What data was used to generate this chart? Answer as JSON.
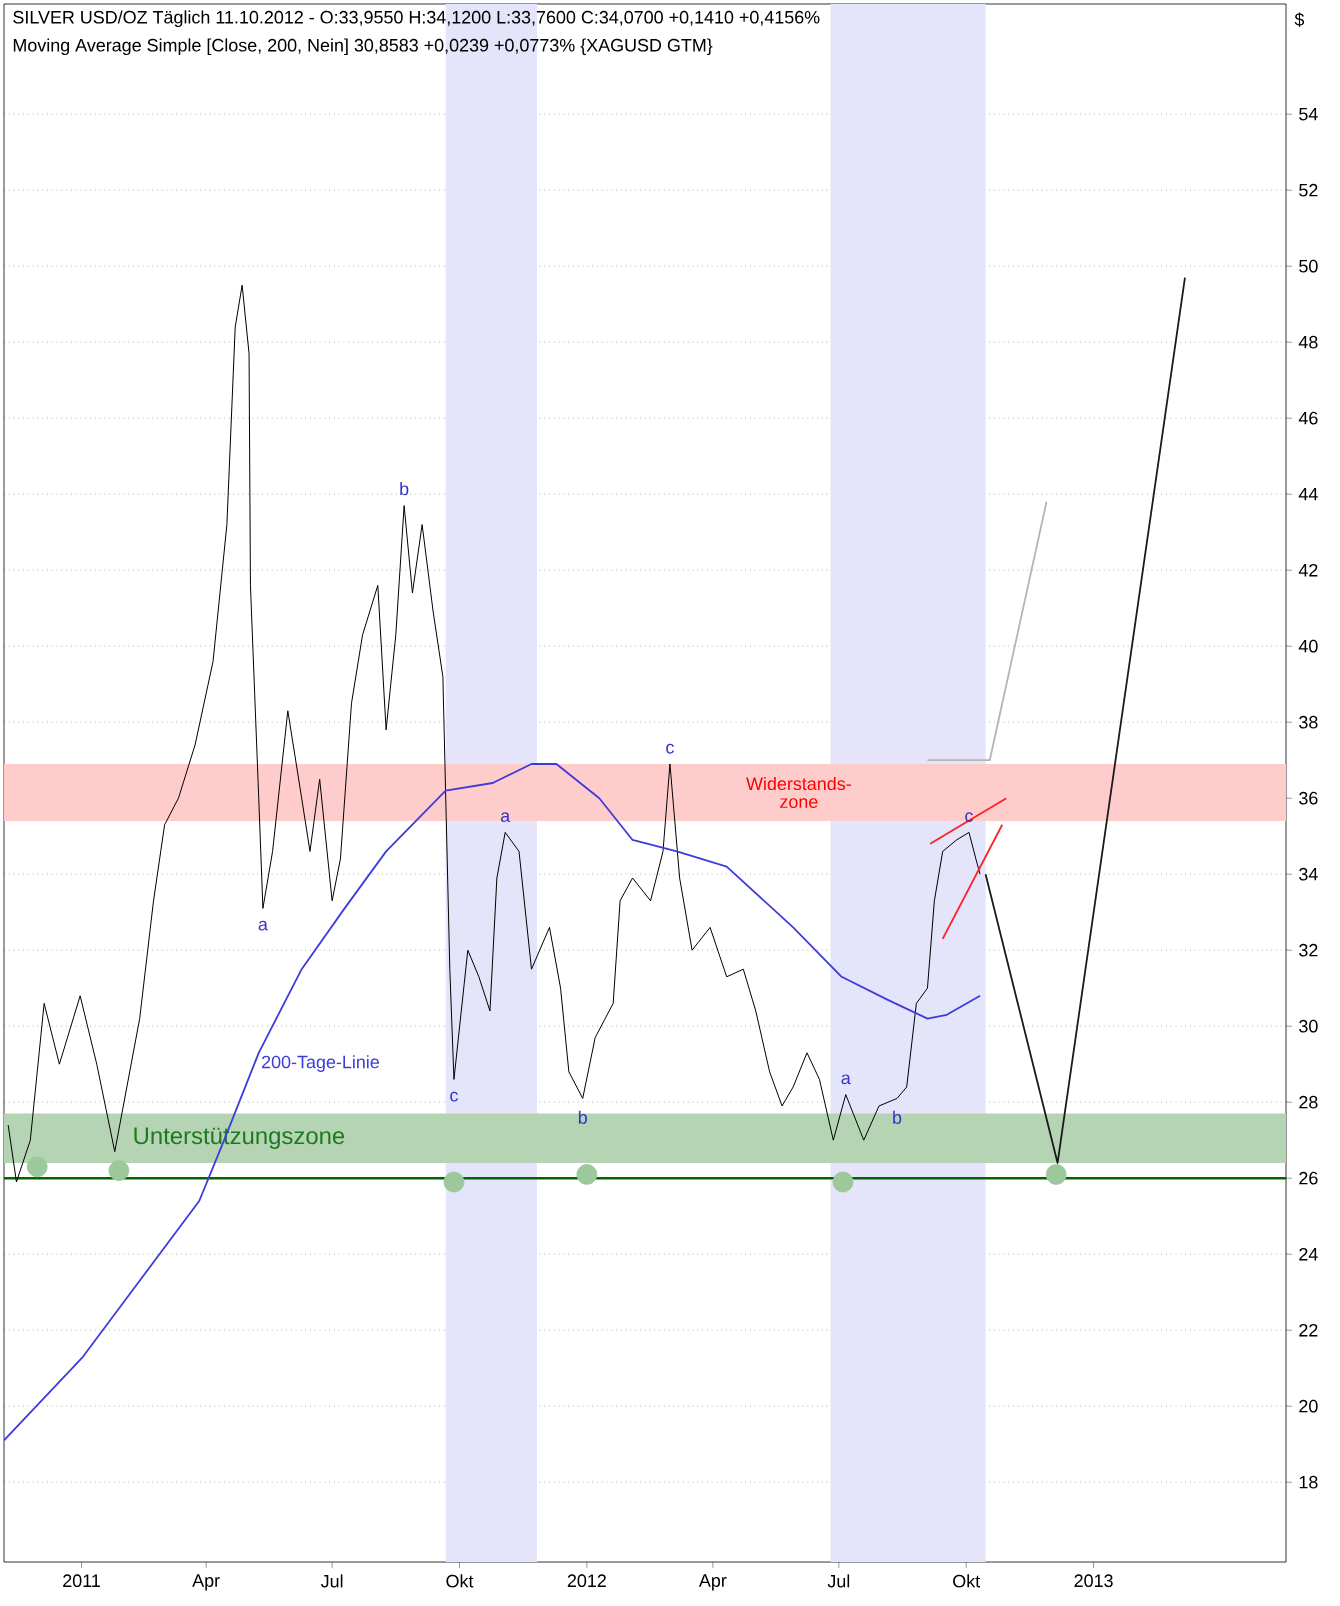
{
  "chart_data": {
    "type": "line",
    "title": "SILVER USD/OZ Täglich 11.10.2012 - O:33,9550 H:34,1200 L:33,7600 C:34,0700 +0,1410 +0,4156%",
    "subtitle": "Moving Average Simple [Close, 200, Nein] 30,8583 +0,0239 +0,0773% {XAGUSD GTM}",
    "ylabel": "$",
    "xlim": [
      "2010-11-06",
      "2013-05-20"
    ],
    "xticks": [
      {
        "value": "2011-01-01",
        "label": "2011"
      },
      {
        "value": "2011-04-01",
        "label": "Apr"
      },
      {
        "value": "2011-07-01",
        "label": "Jul"
      },
      {
        "value": "2011-10-01",
        "label": "Okt"
      },
      {
        "value": "2012-01-01",
        "label": "2012"
      },
      {
        "value": "2012-04-01",
        "label": "Apr"
      },
      {
        "value": "2012-07-01",
        "label": "Jul"
      },
      {
        "value": "2012-10-01",
        "label": "Okt"
      },
      {
        "value": "2013-01-01",
        "label": "2013"
      }
    ],
    "ylim": [
      15.9,
      56.9
    ],
    "yticks": [
      18,
      20,
      22,
      24,
      26,
      28,
      30,
      32,
      34,
      36,
      38,
      40,
      42,
      44,
      46,
      48,
      50,
      52,
      54
    ],
    "grid": "y",
    "series": [
      {
        "color": "#000000",
        "x": [
          "2010-11-09",
          "2010-11-15",
          "2010-11-25",
          "2010-12-05",
          "2010-12-16",
          "2010-12-31",
          "2011-01-12",
          "2011-01-25",
          "2011-02-12",
          "2011-02-22",
          "2011-03-02",
          "2011-03-12",
          "2011-03-24",
          "2011-04-06",
          "2011-04-16",
          "2011-04-22",
          "2011-04-27",
          "2011-05-02",
          "2011-05-03",
          "2011-05-09",
          "2011-05-12",
          "2011-05-19",
          "2011-05-30",
          "2011-06-09",
          "2011-06-15",
          "2011-06-22",
          "2011-07-01",
          "2011-07-07",
          "2011-07-15",
          "2011-07-23",
          "2011-08-03",
          "2011-08-09",
          "2011-08-16",
          "2011-08-22",
          "2011-08-28",
          "2011-09-04",
          "2011-09-12",
          "2011-09-19",
          "2011-09-24",
          "2011-09-27",
          "2011-10-07",
          "2011-10-15",
          "2011-10-23",
          "2011-10-28",
          "2011-11-03",
          "2011-11-13",
          "2011-11-22",
          "2011-12-05",
          "2011-12-13",
          "2011-12-19",
          "2011-12-29",
          "2012-01-07",
          "2012-01-20",
          "2012-01-25",
          "2012-02-03",
          "2012-02-16",
          "2012-02-25",
          "2012-03-01",
          "2012-03-08",
          "2012-03-17",
          "2012-03-30",
          "2012-04-11",
          "2012-04-23",
          "2012-05-02",
          "2012-05-12",
          "2012-05-21",
          "2012-05-29",
          "2012-06-08",
          "2012-06-17",
          "2012-06-27",
          "2012-07-06",
          "2012-07-19",
          "2012-07-30",
          "2012-08-12",
          "2012-08-19",
          "2012-08-26",
          "2012-09-03",
          "2012-09-08",
          "2012-09-14",
          "2012-09-24",
          "2012-10-03",
          "2012-10-08",
          "2012-10-11"
        ],
        "values": [
          27.4,
          25.9,
          27.0,
          30.6,
          29.0,
          30.8,
          29.0,
          26.7,
          30.2,
          33.3,
          35.3,
          36.0,
          37.4,
          39.6,
          43.2,
          48.4,
          49.5,
          47.7,
          41.6,
          36.0,
          33.1,
          34.6,
          38.3,
          36.0,
          34.6,
          36.5,
          33.3,
          34.4,
          38.5,
          40.3,
          41.6,
          37.8,
          40.3,
          43.7,
          41.4,
          43.2,
          40.9,
          39.2,
          31.5,
          28.6,
          32.0,
          31.3,
          30.4,
          33.9,
          35.1,
          34.6,
          31.5,
          32.6,
          31.0,
          28.8,
          28.1,
          29.7,
          30.6,
          33.3,
          33.9,
          33.3,
          34.6,
          36.9,
          33.9,
          32.0,
          32.6,
          31.3,
          31.5,
          30.4,
          28.8,
          27.9,
          28.4,
          29.3,
          28.6,
          27.0,
          28.2,
          27.0,
          27.9,
          28.1,
          28.4,
          30.6,
          31.0,
          33.3,
          34.6,
          34.9,
          35.1,
          34.4,
          34.0
        ]
      },
      {
        "name": "200-Tage-Linie",
        "color": "#3c3cdc",
        "x": [
          "2010-11-06",
          "2011-01-02",
          "2011-02-14",
          "2011-03-27",
          "2011-04-14",
          "2011-05-09",
          "2011-06-09",
          "2011-07-10",
          "2011-08-09",
          "2011-09-21",
          "2011-10-25",
          "2011-11-22",
          "2011-12-10",
          "2012-01-10",
          "2012-02-03",
          "2012-03-06",
          "2012-04-11",
          "2012-05-29",
          "2012-07-03",
          "2012-08-05",
          "2012-09-03",
          "2012-09-17",
          "2012-10-11"
        ],
        "values": [
          19.1,
          21.3,
          23.4,
          25.4,
          27.0,
          29.3,
          31.5,
          33.1,
          34.6,
          36.2,
          36.4,
          36.9,
          36.9,
          36.0,
          34.9,
          34.6,
          34.2,
          32.6,
          31.3,
          30.7,
          30.2,
          30.3,
          30.8
        ]
      },
      {
        "color": "#1a1a1a",
        "x": [
          "2012-10-15",
          "2012-12-06",
          "2013-03-08"
        ],
        "values": [
          34.0,
          26.4,
          49.7
        ]
      },
      {
        "color": "#b4b4b4",
        "x": [
          "2012-09-03",
          "2012-10-18",
          "2012-11-28"
        ],
        "values": [
          37.0,
          37.0,
          43.8
        ]
      },
      {
        "color": "#ff2020",
        "x": [
          "2012-09-05",
          "2012-10-30"
        ],
        "values": [
          34.8,
          36.0
        ]
      },
      {
        "color": "#ff2020",
        "x": [
          "2012-09-14",
          "2012-10-27"
        ],
        "values": [
          32.3,
          35.3
        ]
      },
      {
        "type": "scatter",
        "color": "#9cc89c",
        "x": [
          "2010-11-30",
          "2011-01-28",
          "2011-09-27",
          "2012-01-01",
          "2012-07-04",
          "2012-12-05"
        ],
        "values": [
          26.3,
          26.2,
          25.9,
          26.1,
          25.9,
          26.1
        ]
      }
    ],
    "bands": [
      {
        "axis": "x",
        "from": "2011-09-21",
        "to": "2011-11-26",
        "color": "#e4e4fa"
      },
      {
        "axis": "x",
        "from": "2012-06-25",
        "to": "2012-10-15",
        "color": "#e4e4fa"
      },
      {
        "axis": "y",
        "from": 35.4,
        "to": 36.9,
        "label": "Widerstands- zone",
        "color": "#ffcccc"
      },
      {
        "axis": "y",
        "from": 26.4,
        "to": 27.7,
        "label": "Unterstützungszone",
        "color": "#b4d4b4"
      }
    ],
    "ref_lines": [
      {
        "axis": "y",
        "value": 26.0,
        "color": "#006400"
      }
    ],
    "annotations": [
      {
        "text": "a",
        "x": "2011-05-12",
        "y": 33.1
      },
      {
        "text": "b",
        "x": "2011-08-22",
        "y": 43.7
      },
      {
        "text": "c",
        "x": "2011-09-27",
        "y": 28.6
      },
      {
        "text": "a",
        "x": "2011-11-03",
        "y": 35.1
      },
      {
        "text": "b",
        "x": "2011-12-29",
        "y": 28.1
      },
      {
        "text": "c",
        "x": "2012-03-01",
        "y": 36.9
      },
      {
        "text": "a",
        "x": "2012-07-06",
        "y": 28.2
      },
      {
        "text": "b",
        "x": "2012-08-12",
        "y": 28.1
      },
      {
        "text": "c",
        "x": "2012-10-03",
        "y": 35.1
      }
    ]
  }
}
